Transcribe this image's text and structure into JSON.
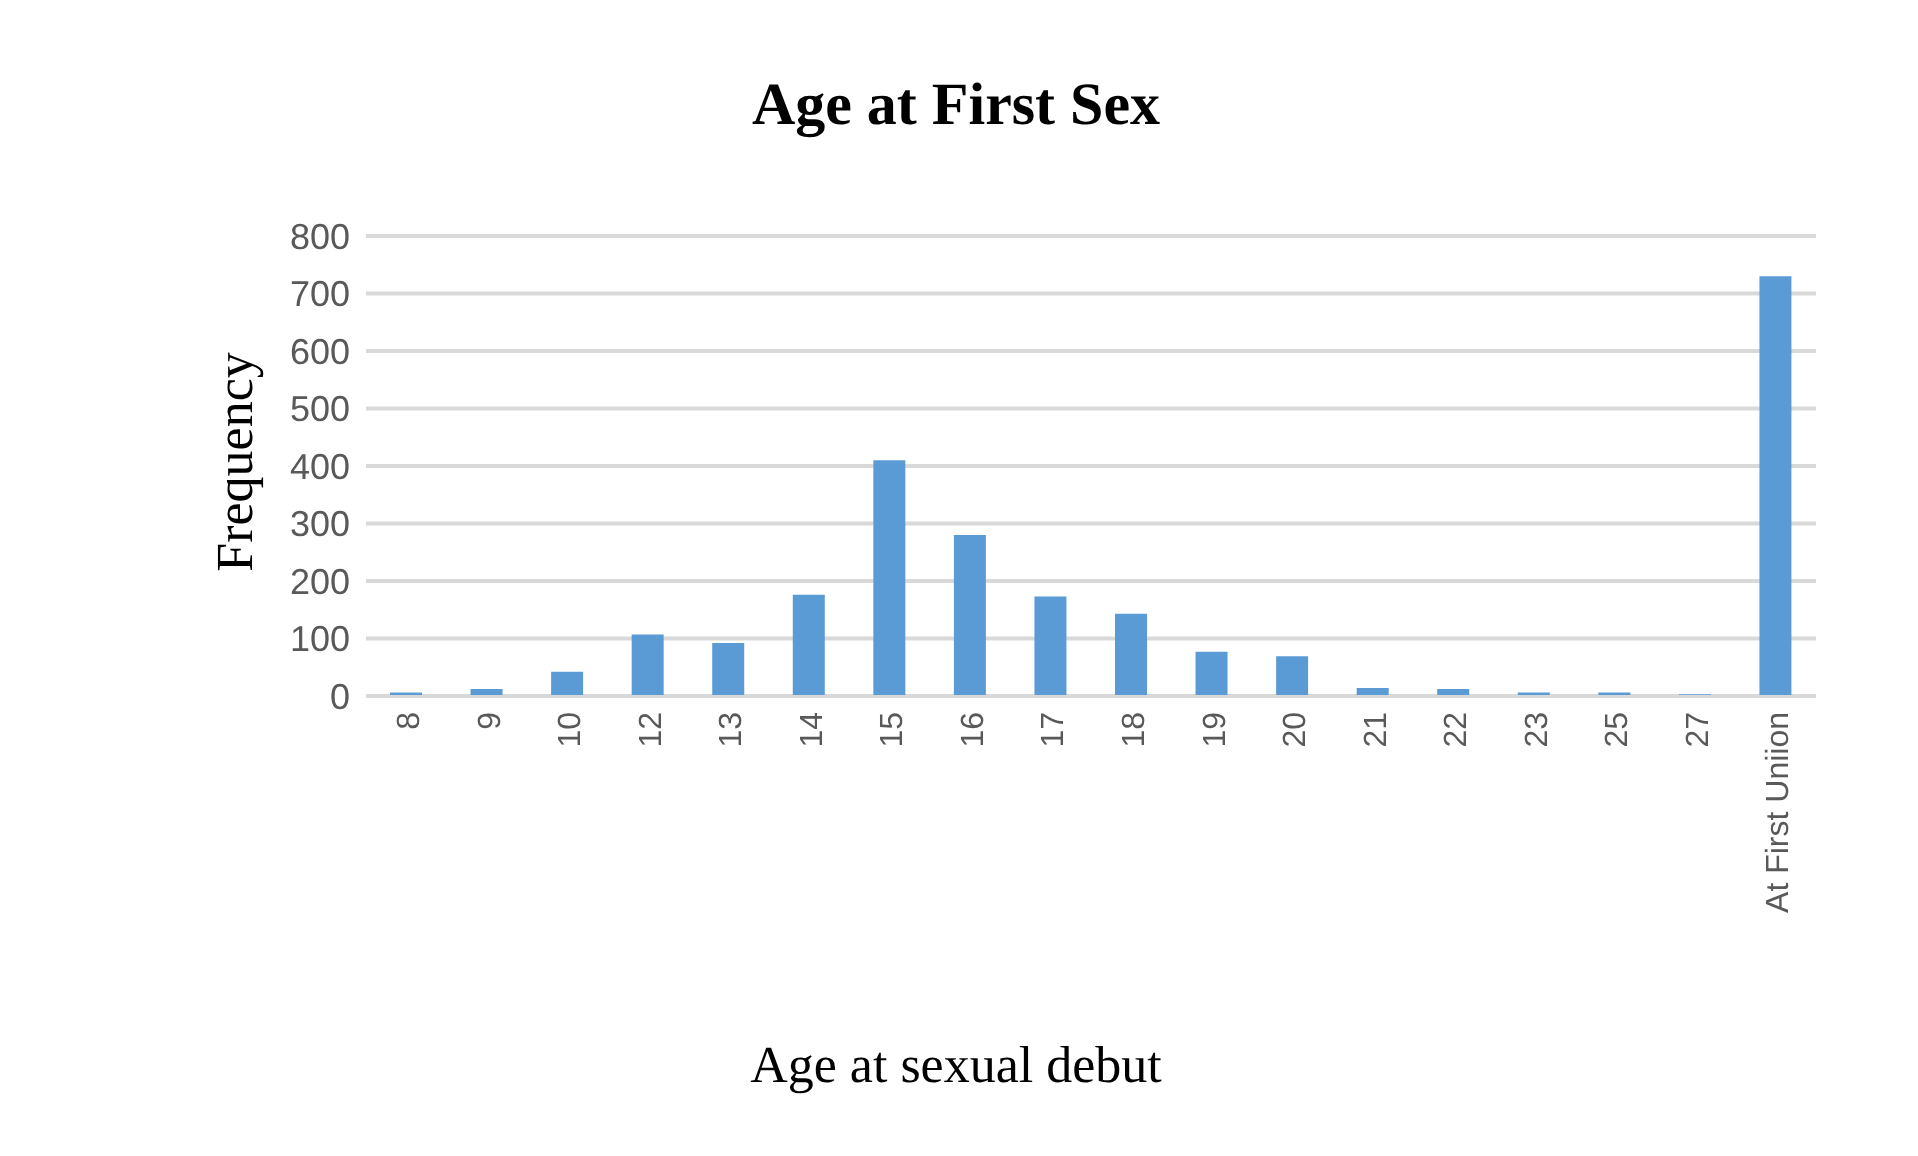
{
  "chart_data": {
    "type": "bar",
    "title": "Age at First Sex",
    "xlabel": "Age at sexual debut",
    "ylabel": "Frequency",
    "categories": [
      "8",
      "9",
      "10",
      "12",
      "13",
      "14",
      "15",
      "16",
      "17",
      "18",
      "19",
      "20",
      "21",
      "22",
      "23",
      "25",
      "27",
      "At First Uniion"
    ],
    "values": [
      6,
      12,
      42,
      107,
      92,
      176,
      410,
      280,
      173,
      143,
      77,
      69,
      14,
      12,
      6,
      6,
      3,
      730
    ],
    "color": "#5b9bd5",
    "ylim": [
      0,
      800
    ],
    "yticks": [
      0,
      100,
      200,
      300,
      400,
      500,
      600,
      700,
      800
    ],
    "grid": "y",
    "legend": false
  }
}
